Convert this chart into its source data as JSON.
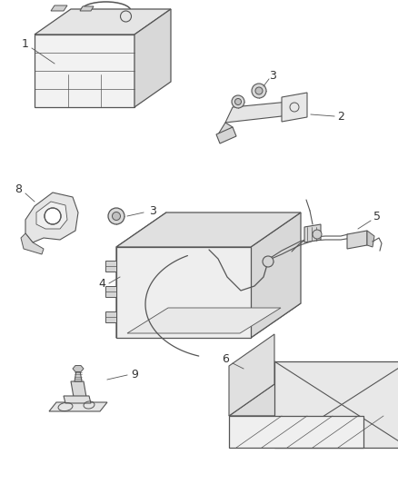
{
  "bg_color": "#ffffff",
  "line_color": "#555555",
  "label_color": "#333333",
  "fig_width": 4.39,
  "fig_height": 5.33,
  "dpi": 100
}
